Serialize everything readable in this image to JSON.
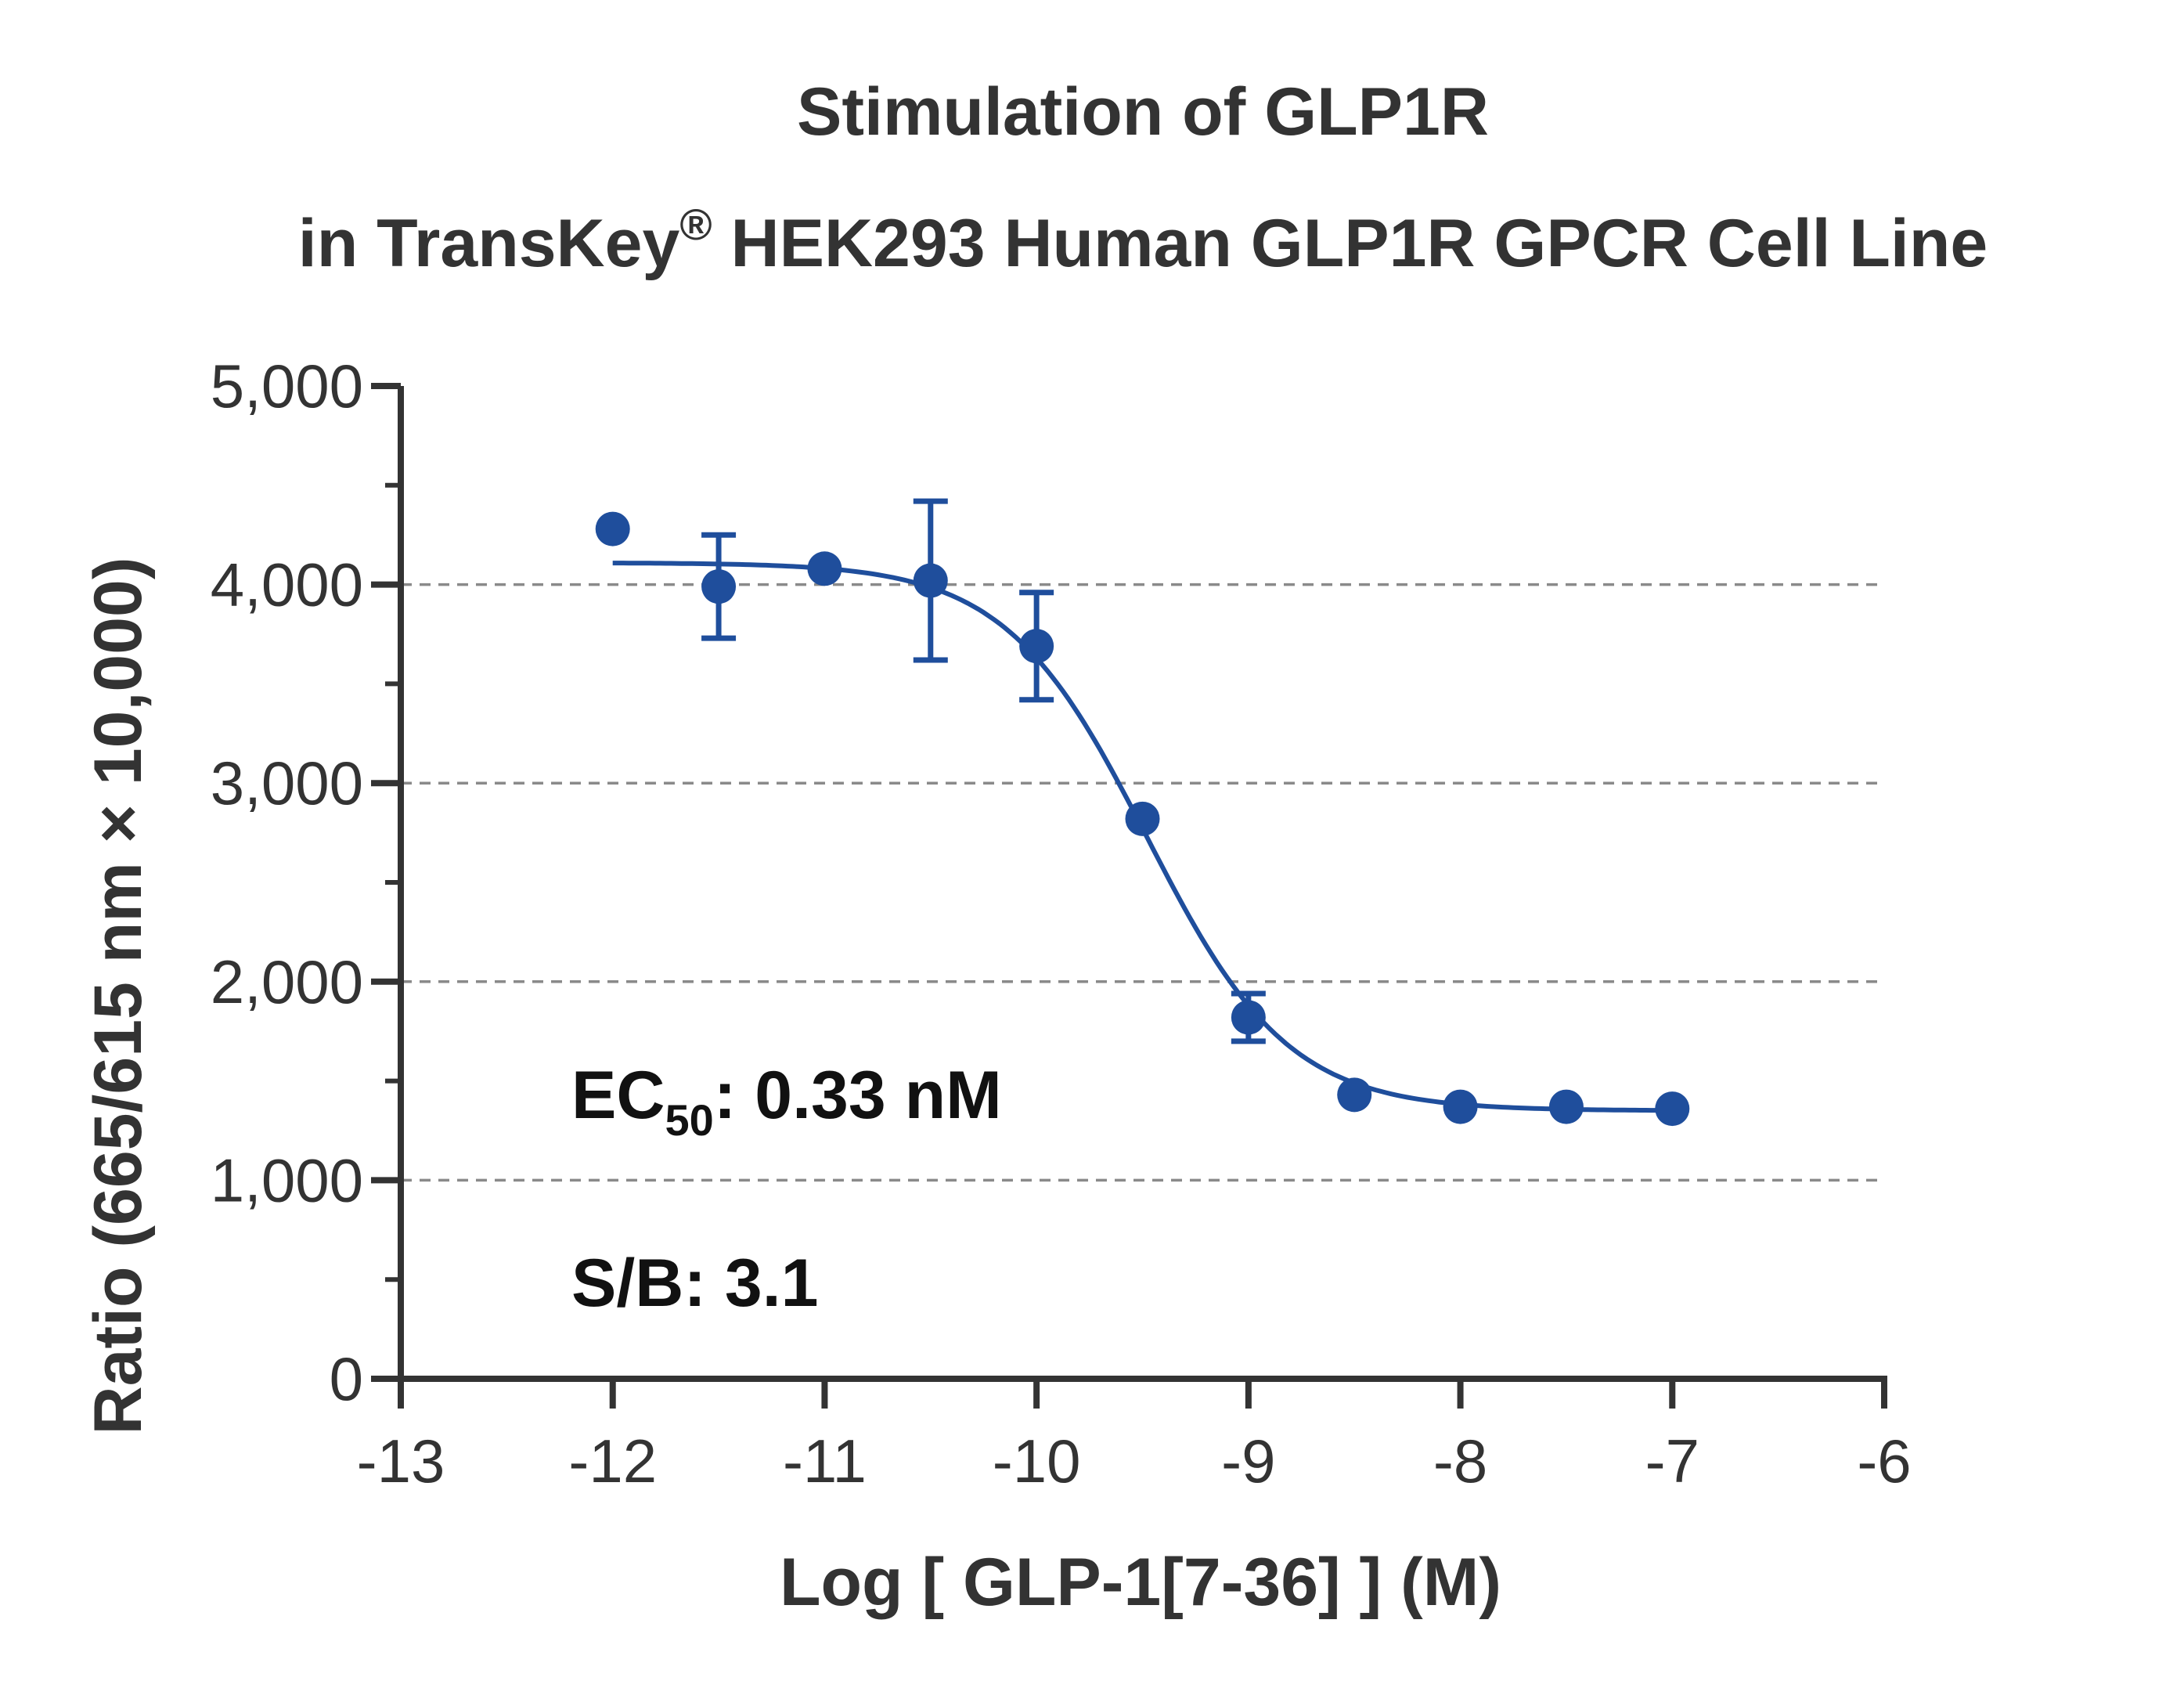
{
  "chart_data": {
    "type": "scatter",
    "title_line1": "Stimulation of  GLP1R",
    "title_line2_pre": "in TransKey",
    "title_line2_sup": "®",
    "title_line2_post": " HEK293 Human GLP1R GPCR Cell Line",
    "xlabel": "Log [ GLP-1[7-36] ]  (M)",
    "ylabel": "Ratio (665/615 nm × 10,000)",
    "xlim": [
      -13,
      -6
    ],
    "ylim": [
      0,
      5000
    ],
    "xticks": [
      -13,
      -12,
      -11,
      -10,
      -9,
      -8,
      -7,
      -6
    ],
    "xtick_labels": [
      "-13",
      "-12",
      "-11",
      "-10",
      "-9",
      "-8",
      "-7",
      "-6"
    ],
    "yticks": [
      0,
      1000,
      2000,
      3000,
      4000,
      5000
    ],
    "ytick_labels": [
      "0",
      "1,000",
      "2,000",
      "3,000",
      "4,000",
      "5,000"
    ],
    "grid": "horizontal dashed at 1000, 2000, 3000, 4000",
    "color": "#1f4e9c",
    "series": [
      {
        "x": [
          -12,
          -11.5,
          -11,
          -10.5,
          -10,
          -9.5,
          -9,
          -8.5,
          -8,
          -7.5,
          -7
        ],
        "y": [
          4280,
          3990,
          4080,
          4020,
          3690,
          2820,
          1820,
          1430,
          1370,
          1370,
          1360
        ],
        "err": [
          0,
          260,
          0,
          400,
          270,
          0,
          120,
          0,
          0,
          0,
          0
        ]
      }
    ],
    "fit": {
      "top": 4110,
      "bottom": 1350,
      "logec50": -9.48,
      "hill": 1.3,
      "x_start": -12,
      "x_end": -7
    },
    "annotations": {
      "ec50_prefix": "EC",
      "ec50_sub": "50",
      "ec50_value": ": 0.33 nM",
      "sb": "S/B: 3.1"
    }
  }
}
